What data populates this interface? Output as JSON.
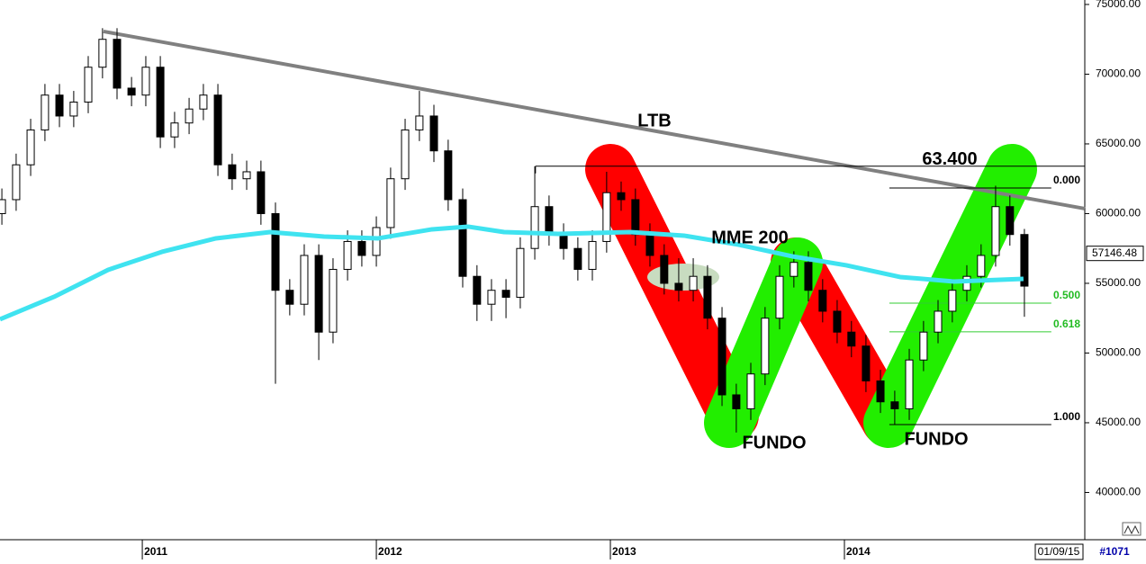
{
  "chart_data": {
    "type": "candlestick",
    "x": [
      2010.4,
      2010.461,
      2010.523,
      2010.584,
      2010.646,
      2010.707,
      2010.769,
      2010.83,
      2010.892,
      2010.954,
      2011.015,
      2011.077,
      2011.138,
      2011.2,
      2011.261,
      2011.323,
      2011.384,
      2011.446,
      2011.507,
      2011.569,
      2011.63,
      2011.692,
      2011.754,
      2011.815,
      2011.877,
      2011.938,
      2012.0,
      2012.061,
      2012.123,
      2012.184,
      2012.246,
      2012.307,
      2012.369,
      2012.43,
      2012.492,
      2012.554,
      2012.615,
      2012.677,
      2012.738,
      2012.8,
      2012.861,
      2012.923,
      2012.984,
      2013.046,
      2013.107,
      2013.169,
      2013.23,
      2013.292,
      2013.354,
      2013.415,
      2013.477,
      2013.538,
      2013.6,
      2013.661,
      2013.723,
      2013.784,
      2013.846,
      2013.907,
      2013.969,
      2014.03,
      2014.092,
      2014.154,
      2014.215,
      2014.277,
      2014.338,
      2014.4,
      2014.461,
      2014.523,
      2014.584,
      2014.646,
      2014.707,
      2014.769
    ],
    "open": [
      60000,
      61000,
      63500,
      66000,
      68500,
      67000,
      68000,
      70500,
      72500,
      69000,
      68500,
      70500,
      65500,
      66500,
      67500,
      68500,
      63500,
      62500,
      63000,
      60000,
      54500,
      53500,
      57000,
      51500,
      56000,
      58000,
      57000,
      59000,
      62500,
      66000,
      67000,
      64500,
      61000,
      55500,
      53500,
      54500,
      54000,
      57500,
      60500,
      58500,
      57500,
      56000,
      58000,
      61500,
      61000,
      58500,
      57000,
      55000,
      54500,
      55500,
      52500,
      47000,
      46000,
      48500,
      52500,
      55500,
      56500,
      54500,
      53000,
      51500,
      50500,
      48000,
      46500,
      46000,
      49500,
      51500,
      53000,
      54500,
      55500,
      57000,
      60500,
      58500
    ],
    "high": [
      61800,
      64300,
      66800,
      69300,
      69300,
      68800,
      71300,
      73300,
      73300,
      69800,
      71300,
      71300,
      67300,
      68300,
      69300,
      69300,
      64300,
      63800,
      63800,
      60800,
      55300,
      57800,
      57800,
      56800,
      58800,
      58800,
      59800,
      63300,
      66800,
      68800,
      67800,
      65300,
      61800,
      56300,
      55300,
      55300,
      58300,
      63400,
      61300,
      59300,
      58300,
      58800,
      63000,
      62300,
      61800,
      59300,
      57800,
      56800,
      56800,
      56300,
      53300,
      47800,
      49300,
      53300,
      56300,
      57300,
      57300,
      55300,
      53800,
      52300,
      51300,
      48800,
      47300,
      50300,
      52300,
      53800,
      55300,
      56300,
      57800,
      62000,
      61300,
      58900
    ],
    "low": [
      59200,
      60200,
      62700,
      65200,
      66200,
      66200,
      67200,
      69700,
      68200,
      67700,
      67700,
      64700,
      64700,
      65700,
      66700,
      62700,
      61700,
      61700,
      59200,
      47800,
      52700,
      52700,
      49500,
      50700,
      55200,
      56200,
      56200,
      58200,
      61700,
      65200,
      63700,
      60200,
      54700,
      52300,
      52300,
      52500,
      53200,
      56700,
      57700,
      56700,
      55200,
      55200,
      57200,
      60200,
      57700,
      56200,
      54200,
      53700,
      53700,
      51700,
      46200,
      44300,
      45200,
      47700,
      51700,
      54700,
      53700,
      52200,
      50700,
      49700,
      47200,
      45700,
      44900,
      45200,
      48700,
      50700,
      52200,
      53700,
      54700,
      56200,
      57700,
      52600
    ],
    "close": [
      61000,
      63500,
      66000,
      68500,
      67000,
      68000,
      70500,
      72500,
      69000,
      68500,
      70500,
      65500,
      66500,
      67500,
      68500,
      63500,
      62500,
      63000,
      60000,
      54500,
      53500,
      57000,
      51500,
      56000,
      58000,
      57000,
      59000,
      62500,
      66000,
      67000,
      64500,
      61000,
      55500,
      53500,
      54500,
      54000,
      57500,
      60500,
      58500,
      57500,
      56000,
      58000,
      61500,
      61000,
      58500,
      57000,
      55000,
      54500,
      55500,
      52500,
      47000,
      46000,
      48500,
      52500,
      55500,
      56500,
      54500,
      53000,
      51500,
      50500,
      48000,
      46500,
      46000,
      49500,
      51500,
      53000,
      54500,
      55500,
      57000,
      60500,
      58500,
      54800
    ],
    "xlim": [
      2010.392,
      2015.027
    ],
    "xticks": [
      2011,
      2012,
      2013,
      2014
    ],
    "ylim": [
      36740,
      75320
    ],
    "yticks": [
      {
        "value": 75000,
        "label": "75000.00"
      },
      {
        "value": 70000,
        "label": "70000.00"
      },
      {
        "value": 65000,
        "label": "65000.00"
      },
      {
        "value": 60000,
        "label": "60000.00"
      },
      {
        "value": 55000,
        "label": "55000.00"
      },
      {
        "value": 50000,
        "label": "50000.00"
      },
      {
        "value": 45000,
        "label": "45000.00"
      },
      {
        "value": 40000,
        "label": "40000.00"
      }
    ],
    "last_price": 57146.48,
    "ma": {
      "name": "MME 200",
      "color": "#3fe3f0",
      "x": [
        2010.392,
        2010.623,
        2010.854,
        2011.084,
        2011.315,
        2011.546,
        2011.777,
        2012.008,
        2012.238,
        2012.392,
        2012.546,
        2012.777,
        2013.084,
        2013.315,
        2013.546,
        2013.777,
        2014.008,
        2014.238,
        2014.469,
        2014.765
      ],
      "values": [
        52419,
        54032,
        55968,
        57258,
        58226,
        58677,
        58355,
        58226,
        58871,
        59065,
        58677,
        58548,
        58677,
        58419,
        57774,
        56935,
        56290,
        55452,
        55129,
        55323
      ]
    },
    "trendline": {
      "label": "LTB",
      "color": "#808080",
      "x": [
        2010.834,
        2015.027
      ],
      "values": [
        73065,
        60355
      ]
    },
    "resistance": {
      "value": 63400,
      "label": "63.400",
      "x": [
        2012.68,
        2015.027
      ]
    },
    "fib_x": [
      2014.192,
      2014.884
    ],
    "fib_levels": [
      {
        "label": "0.000",
        "value": 61840,
        "color": "#000000"
      },
      {
        "label": "0.500",
        "value": 53580,
        "color": "#33cc33"
      },
      {
        "label": "0.618",
        "value": 51520,
        "color": "#33cc33"
      },
      {
        "label": "1.000",
        "value": 44870,
        "color": "#000000"
      }
    ],
    "annotations": [
      "FUNDO",
      "FUNDO"
    ],
    "date_label": "01/09/15",
    "bar_label": "#1071"
  }
}
